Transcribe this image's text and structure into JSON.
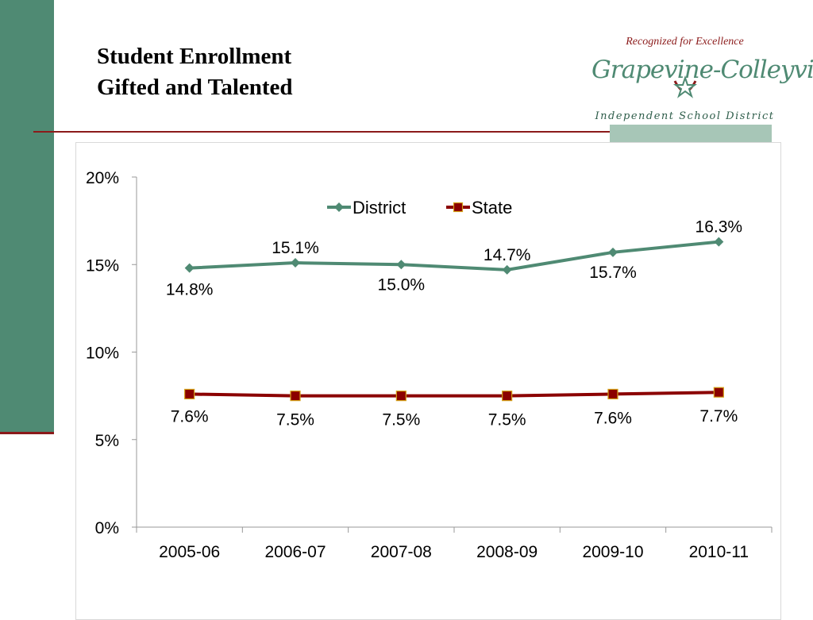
{
  "title": {
    "line1": "Student Enrollment",
    "line2": "Gifted and Talented"
  },
  "logo": {
    "tagline": "Recognized for Excellence",
    "name": "Grapevine-Colleyville",
    "subtitle": "Independent School District",
    "star_icon": "star-icon"
  },
  "colors": {
    "district": "#4f8a73",
    "state": "#8b0000",
    "state_marker_border": "#d4a017",
    "accent_bar": "#4f8a73",
    "rule": "#8b1a1a"
  },
  "chart_data": {
    "type": "line",
    "categories": [
      "2005-06",
      "2006-07",
      "2007-08",
      "2008-09",
      "2009-10",
      "2010-11"
    ],
    "series": [
      {
        "name": "District",
        "values": [
          14.8,
          15.1,
          15.0,
          14.7,
          15.7,
          16.3
        ],
        "labels": [
          "14.8%",
          "15.1%",
          "15.0%",
          "14.7%",
          "15.7%",
          "16.3%"
        ],
        "marker": "diamond"
      },
      {
        "name": "State",
        "values": [
          7.6,
          7.5,
          7.5,
          7.5,
          7.6,
          7.7
        ],
        "labels": [
          "7.6%",
          "7.5%",
          "7.5%",
          "7.5%",
          "7.6%",
          "7.7%"
        ],
        "marker": "square"
      }
    ],
    "ylim": [
      0,
      20
    ],
    "yticks": [
      0,
      5,
      10,
      15,
      20
    ],
    "ytick_labels": [
      "0%",
      "5%",
      "10%",
      "15%",
      "20%"
    ],
    "grid": false,
    "legend": "top-center"
  }
}
